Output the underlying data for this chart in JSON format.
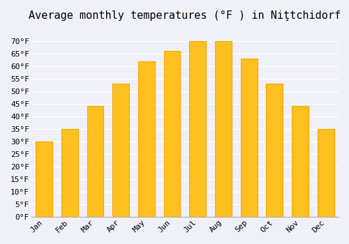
{
  "title": "Average monthly temperatures (°F ) in Niţtchidorf",
  "months": [
    "Jan",
    "Feb",
    "Mar",
    "Apr",
    "May",
    "Jun",
    "Jul",
    "Aug",
    "Sep",
    "Oct",
    "Nov",
    "Dec"
  ],
  "values": [
    30,
    35,
    44,
    53,
    62,
    66,
    70,
    70,
    63,
    53,
    44,
    35
  ],
  "bar_color": "#FFC020",
  "bar_edge_color": "#FFA500",
  "background_color": "#F0F0F8",
  "ylim": [
    0,
    75
  ],
  "yticks": [
    0,
    5,
    10,
    15,
    20,
    25,
    30,
    35,
    40,
    45,
    50,
    55,
    60,
    65,
    70
  ],
  "ytick_labels": [
    "0°F",
    "5°F",
    "10°F",
    "15°F",
    "20°F",
    "25°F",
    "30°F",
    "35°F",
    "40°F",
    "45°F",
    "50°F",
    "55°F",
    "60°F",
    "65°F",
    "70°F"
  ],
  "title_fontsize": 11,
  "tick_fontsize": 8,
  "grid_color": "#FFFFFF",
  "grid_linewidth": 1.0
}
